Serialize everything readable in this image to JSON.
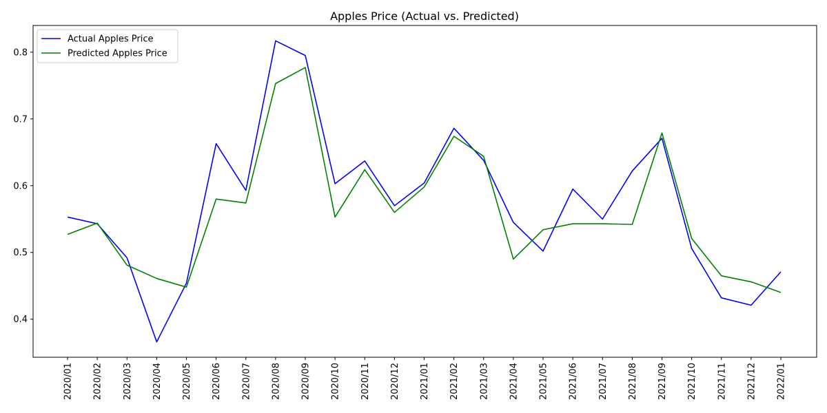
{
  "chart_data": {
    "type": "line",
    "title": "Apples Price (Actual vs. Predicted)",
    "xlabel": "",
    "ylabel": "",
    "categories": [
      "2020/01",
      "2020/02",
      "2020/03",
      "2020/04",
      "2020/05",
      "2020/06",
      "2020/07",
      "2020/08",
      "2020/09",
      "2020/10",
      "2020/11",
      "2020/12",
      "2021/01",
      "2021/02",
      "2021/03",
      "2021/04",
      "2021/05",
      "2021/06",
      "2021/07",
      "2021/08",
      "2021/09",
      "2021/10",
      "2021/11",
      "2021/12",
      "2022/01"
    ],
    "ylim": [
      0.343,
      0.84
    ],
    "yticks": [
      0.4,
      0.5,
      0.6,
      0.7,
      0.8
    ],
    "ytick_labels": [
      "0.4",
      "0.5",
      "0.6",
      "0.7",
      "0.8"
    ],
    "series": [
      {
        "name": "Actual Apples Price",
        "color": "#0000ff",
        "values": [
          0.553,
          0.543,
          0.492,
          0.366,
          0.454,
          0.663,
          0.593,
          0.817,
          0.795,
          0.603,
          0.637,
          0.57,
          0.604,
          0.686,
          0.638,
          0.545,
          0.502,
          0.595,
          0.55,
          0.622,
          0.671,
          0.506,
          0.432,
          0.421,
          0.471
        ]
      },
      {
        "name": "Predicted Apples Price",
        "color": "#008000",
        "values": [
          0.527,
          0.544,
          0.481,
          0.461,
          0.448,
          0.58,
          0.574,
          0.753,
          0.777,
          0.553,
          0.624,
          0.56,
          0.598,
          0.674,
          0.644,
          0.49,
          0.534,
          0.543,
          0.543,
          0.542,
          0.679,
          0.521,
          0.465,
          0.456,
          0.44
        ]
      }
    ],
    "grid": false,
    "legend_position": "top-left"
  }
}
